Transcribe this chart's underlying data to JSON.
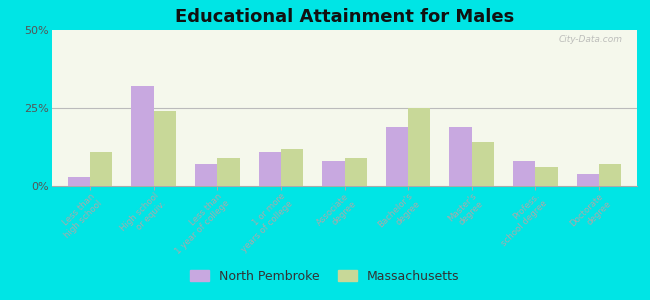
{
  "title": "Educational Attainment for Males",
  "categories": [
    "Less than\nhigh school",
    "High school\nor equiv.",
    "Less than\n1 year of college",
    "1 or more\nyears of college",
    "Associate\ndegree",
    "Bachelor's\ndegree",
    "Master's\ndegree",
    "Profess.\nschool degree",
    "Doctorate\ndegree"
  ],
  "north_pembroke": [
    3,
    32,
    7,
    11,
    8,
    19,
    19,
    8,
    4
  ],
  "massachusetts": [
    11,
    24,
    9,
    12,
    9,
    25,
    14,
    6,
    7
  ],
  "color_np": "#c8a8e0",
  "color_ma": "#c8d898",
  "background_outer": "#00e5e5",
  "background_plot_top": "#e8f0d0",
  "background_plot_bottom": "#f5f8ec",
  "ylim": [
    0,
    50
  ],
  "yticks": [
    0,
    25,
    50
  ],
  "legend_np": "North Pembroke",
  "legend_ma": "Massachusetts",
  "watermark": "City-Data.com"
}
